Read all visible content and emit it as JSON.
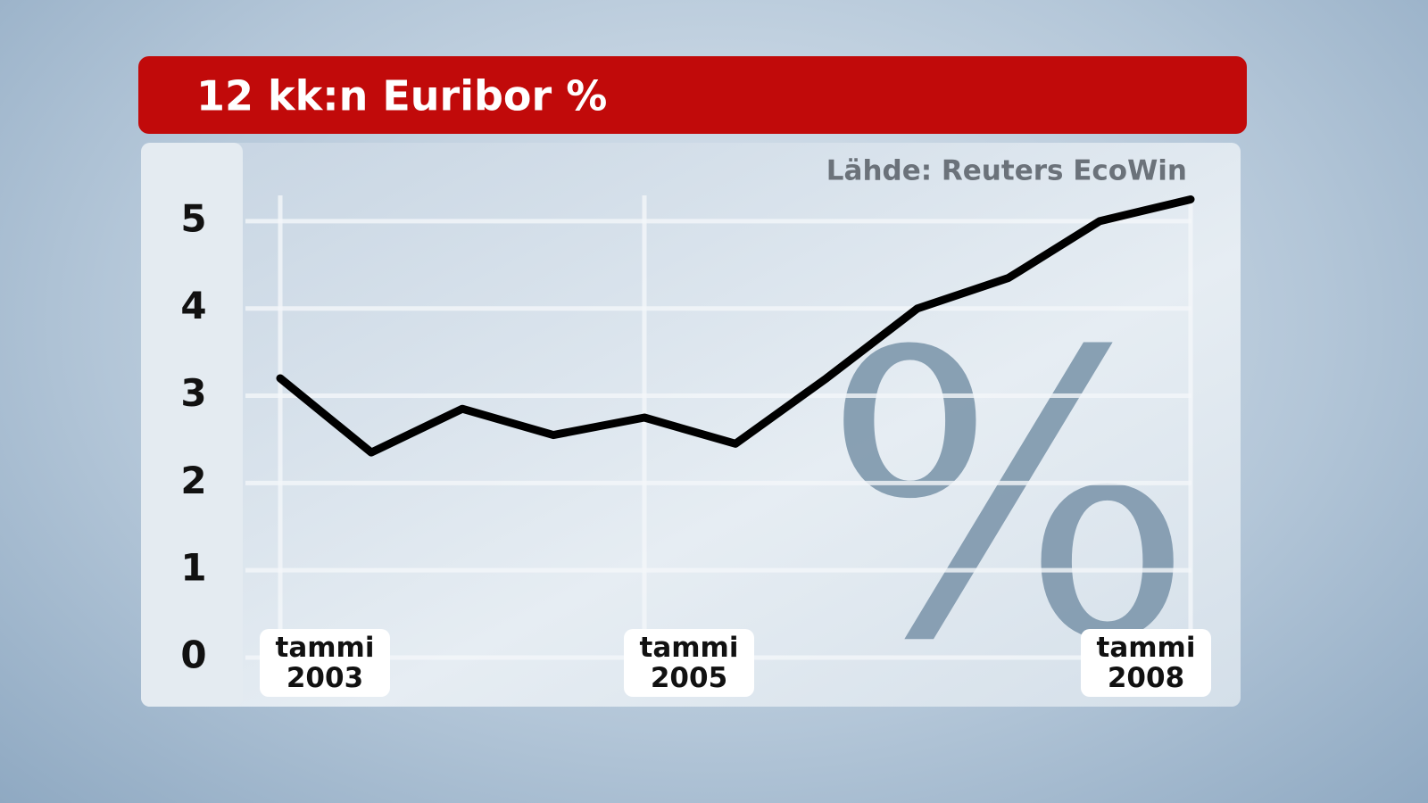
{
  "chart_data": {
    "type": "line",
    "title": "12 kk:n Euribor %",
    "source": "Lähde: Reuters EcoWin",
    "watermark": "%",
    "categories": [
      "tammi 2003",
      null,
      null,
      null,
      "tammi 2005",
      null,
      null,
      null,
      null,
      null,
      "tammi 2008"
    ],
    "series": [
      {
        "name": "12 kk:n Euribor",
        "color": "#000000",
        "values": [
          3.2,
          2.35,
          2.85,
          2.55,
          2.75,
          2.45,
          3.2,
          4.0,
          4.35,
          5.0,
          5.25
        ]
      }
    ],
    "ylim": [
      0,
      5.5
    ],
    "yticks": [
      0,
      1,
      2,
      3,
      4,
      5
    ],
    "grid": true
  }
}
